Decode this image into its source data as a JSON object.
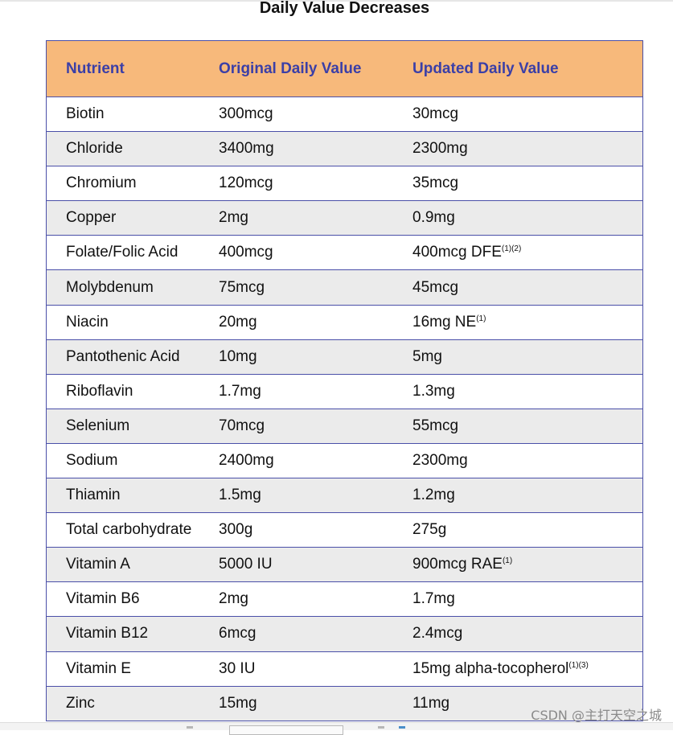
{
  "title": "Daily Value Decreases",
  "header": {
    "nutrient": "Nutrient",
    "original": "Original Daily Value",
    "updated": "Updated Daily Value"
  },
  "rows": [
    {
      "nutrient": "Biotin",
      "original": "300mcg",
      "updated": "30mcg",
      "note": ""
    },
    {
      "nutrient": "Chloride",
      "original": "3400mg",
      "updated": "2300mg",
      "note": ""
    },
    {
      "nutrient": "Chromium",
      "original": "120mcg",
      "updated": "35mcg",
      "note": ""
    },
    {
      "nutrient": "Copper",
      "original": "2mg",
      "updated": "0.9mg",
      "note": ""
    },
    {
      "nutrient": "Folate/Folic Acid",
      "original": "400mcg",
      "updated": "400mcg DFE",
      "note": "(1)(2)"
    },
    {
      "nutrient": "Molybdenum",
      "original": "75mcg",
      "updated": "45mcg",
      "note": ""
    },
    {
      "nutrient": "Niacin",
      "original": "20mg",
      "updated": "16mg NE",
      "note": "(1)"
    },
    {
      "nutrient": "Pantothenic Acid",
      "original": "10mg",
      "updated": "5mg",
      "note": ""
    },
    {
      "nutrient": "Riboflavin",
      "original": "1.7mg",
      "updated": "1.3mg",
      "note": ""
    },
    {
      "nutrient": "Selenium",
      "original": "70mcg",
      "updated": "55mcg",
      "note": ""
    },
    {
      "nutrient": "Sodium",
      "original": "2400mg",
      "updated": "2300mg",
      "note": ""
    },
    {
      "nutrient": "Thiamin",
      "original": "1.5mg",
      "updated": "1.2mg",
      "note": ""
    },
    {
      "nutrient": "Total carbohydrate",
      "original": "300g",
      "updated": "275g",
      "note": ""
    },
    {
      "nutrient": "Vitamin A",
      "original": "5000 IU",
      "updated": "900mcg RAE",
      "note": "(1)"
    },
    {
      "nutrient": "Vitamin B6",
      "original": "2mg",
      "updated": "1.7mg",
      "note": ""
    },
    {
      "nutrient": "Vitamin B12",
      "original": "6mcg",
      "updated": "2.4mcg",
      "note": ""
    },
    {
      "nutrient": "Vitamin E",
      "original": "30 IU",
      "updated": "15mg alpha-tocopherol",
      "note": "(1)(3)"
    },
    {
      "nutrient": "Zinc",
      "original": "15mg",
      "updated": "11mg",
      "note": ""
    }
  ],
  "watermark": "CSDN @主打天空之城",
  "colors": {
    "header_bg": "#f7b97b",
    "header_text": "#3b3fa7",
    "border": "#4a4fa8",
    "stripe": "#ebebeb"
  }
}
